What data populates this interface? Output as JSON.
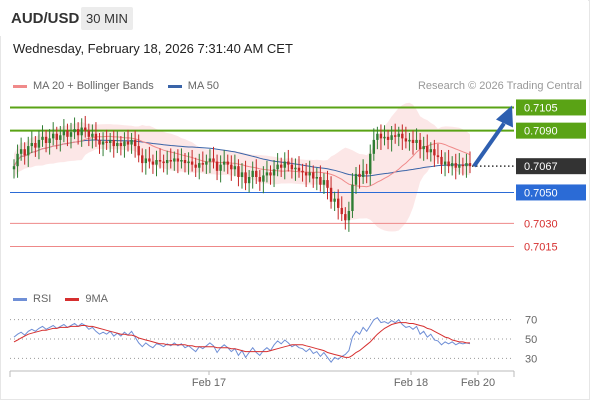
{
  "header": {
    "symbol": "AUD/USD",
    "timeframe": "30 MIN",
    "timestamp": "Wednesday, February 18, 2026 7:31:40 AM CET"
  },
  "legend": {
    "ma20_label": "MA 20 + Bollinger Bands",
    "ma50_label": "MA 50",
    "credit": "Research © 2026 Trading Central"
  },
  "rsi_legend": {
    "rsi_label": "RSI",
    "ma_label": "9MA"
  },
  "colors": {
    "green": "#5aa315",
    "blue": "#2b6bd6",
    "red_line": "#ee8888",
    "red_text": "#d62f2f",
    "dark": "#333333",
    "candle_up": "#2f7d33",
    "candle_down": "#c42525",
    "bb_fill": "#f9d4d4",
    "ma20": "#f08a8a",
    "ma50": "#3a64a8",
    "rsi": "#6f8fd6",
    "rsi_ma": "#d62f2f"
  },
  "chart_data": {
    "type": "candlestick",
    "ylim": [
      0.7005,
      0.7115
    ],
    "levels": [
      {
        "value": 0.7105,
        "label": "0.7105",
        "style": "resistance"
      },
      {
        "value": 0.709,
        "label": "0.7090",
        "style": "resistance"
      },
      {
        "value": 0.7067,
        "label": "0.7067",
        "style": "current"
      },
      {
        "value": 0.705,
        "label": "0.7050",
        "style": "pivot"
      },
      {
        "value": 0.703,
        "label": "0.7030",
        "style": "support"
      },
      {
        "value": 0.7015,
        "label": "0.7015",
        "style": "support"
      }
    ],
    "forecast_target": 0.7105,
    "xticks": [
      "Feb 17",
      "Feb 18",
      "Feb 20"
    ],
    "closes": [
      0.7067,
      0.7075,
      0.7078,
      0.7074,
      0.708,
      0.7082,
      0.7079,
      0.7084,
      0.7086,
      0.7082,
      0.7085,
      0.7088,
      0.7084,
      0.7087,
      0.709,
      0.7086,
      0.7089,
      0.7091,
      0.7087,
      0.7092,
      0.709,
      0.7086,
      0.7088,
      0.7084,
      0.7081,
      0.7083,
      0.7082,
      0.7084,
      0.708,
      0.7082,
      0.708,
      0.7083,
      0.7081,
      0.7084,
      0.708,
      0.7074,
      0.7069,
      0.7072,
      0.707,
      0.7068,
      0.7071,
      0.707,
      0.7069,
      0.7071,
      0.707,
      0.7072,
      0.707,
      0.7071,
      0.7069,
      0.707,
      0.7068,
      0.7066,
      0.7069,
      0.7068,
      0.707,
      0.7072,
      0.707,
      0.7064,
      0.7068,
      0.707,
      0.7068,
      0.7065,
      0.7067,
      0.706,
      0.7063,
      0.7056,
      0.706,
      0.7064,
      0.706,
      0.7057,
      0.7061,
      0.7063,
      0.7061,
      0.7065,
      0.7068,
      0.7066,
      0.707,
      0.7068,
      0.7065,
      0.7066,
      0.7064,
      0.7063,
      0.7061,
      0.7063,
      0.7059,
      0.706,
      0.7055,
      0.7058,
      0.7053,
      0.7044,
      0.7046,
      0.704,
      0.7036,
      0.7032,
      0.7038,
      0.7055,
      0.7062,
      0.706,
      0.7064,
      0.7062,
      0.7075,
      0.7084,
      0.7088,
      0.7085,
      0.7086,
      0.7084,
      0.7087,
      0.7086,
      0.7088,
      0.7085,
      0.7083,
      0.7084,
      0.7082,
      0.7084,
      0.7078,
      0.708,
      0.7076,
      0.7078,
      0.7074,
      0.7073,
      0.7068,
      0.707,
      0.7067,
      0.7069,
      0.7066,
      0.7068,
      0.7067,
      0.7069,
      0.7067
    ],
    "rsi": {
      "ylim": [
        20,
        80
      ],
      "ticks": [
        70,
        50,
        30
      ],
      "values": [
        52,
        55,
        57,
        54,
        58,
        60,
        58,
        61,
        63,
        60,
        62,
        64,
        61,
        63,
        65,
        62,
        64,
        66,
        63,
        66,
        64,
        60,
        62,
        58,
        55,
        57,
        55,
        58,
        53,
        56,
        53,
        57,
        54,
        58,
        52,
        46,
        42,
        46,
        43,
        41,
        45,
        44,
        42,
        45,
        43,
        46,
        43,
        45,
        41,
        43,
        40,
        37,
        42,
        40,
        43,
        46,
        43,
        36,
        41,
        44,
        41,
        37,
        40,
        33,
        38,
        31,
        36,
        41,
        36,
        33,
        38,
        41,
        38,
        44,
        48,
        45,
        49,
        46,
        42,
        44,
        41,
        40,
        37,
        40,
        35,
        37,
        32,
        36,
        31,
        26,
        31,
        29,
        32,
        34,
        38,
        52,
        58,
        55,
        62,
        58,
        64,
        70,
        72,
        67,
        68,
        66,
        69,
        67,
        70,
        65,
        62,
        63,
        60,
        63,
        55,
        58,
        52,
        55,
        49,
        48,
        44,
        47,
        45,
        47,
        44,
        46,
        45,
        46,
        45
      ],
      "ma": [
        47,
        49,
        51,
        53,
        55,
        56,
        57,
        58,
        59,
        59,
        60,
        61,
        61,
        62,
        62,
        62,
        63,
        63,
        63,
        64,
        64,
        63,
        63,
        62,
        61,
        60,
        59,
        58,
        57,
        56,
        55,
        55,
        54,
        54,
        53,
        51,
        50,
        49,
        48,
        47,
        46,
        45,
        45,
        44,
        44,
        44,
        44,
        44,
        44,
        43,
        43,
        42,
        42,
        42,
        42,
        42,
        42,
        41,
        41,
        41,
        41,
        40,
        40,
        39,
        38,
        37,
        37,
        37,
        37,
        37,
        37,
        37,
        38,
        39,
        40,
        41,
        42,
        43,
        44,
        44,
        44,
        44,
        43,
        42,
        41,
        40,
        39,
        38,
        36,
        35,
        34,
        33,
        32,
        31,
        31,
        33,
        36,
        38,
        41,
        44,
        47,
        51,
        55,
        58,
        61,
        63,
        65,
        66,
        67,
        67,
        67,
        66,
        66,
        65,
        64,
        63,
        61,
        60,
        58,
        56,
        54,
        52,
        51,
        49,
        48,
        47,
        47,
        46,
        46
      ]
    }
  }
}
